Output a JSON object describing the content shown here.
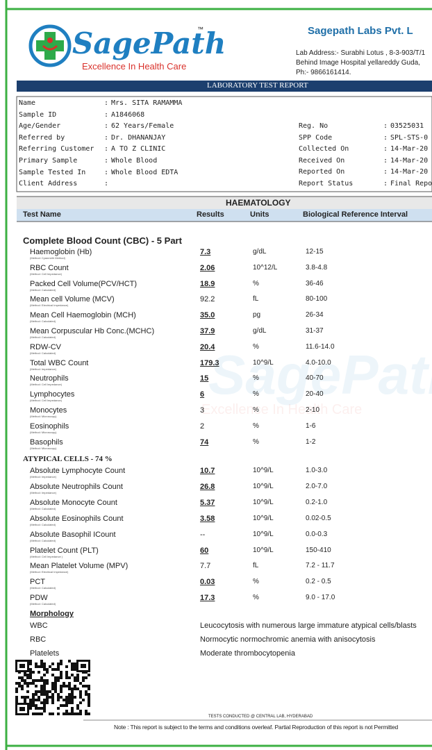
{
  "header": {
    "logo_text": "SagePath",
    "trademark": "™",
    "tagline": "Excellence In Health Care",
    "lab_name": "Sagepath Labs Pvt. L",
    "address_lines": [
      "Lab Address:- Surabhi Lotus , 8-3-903/T/1",
      "Behind Image Hospital yellareddy Guda,",
      "Ph:- 9866161414."
    ]
  },
  "banner": "LABORATORY TEST REPORT",
  "patient": {
    "separator": ":",
    "left": [
      {
        "label": "Name",
        "value": "Mrs. SITA RAMAMMA"
      },
      {
        "label": "Sample ID",
        "value": "A1846068"
      },
      {
        "label": "Age/Gender",
        "value": "62 Years/Female"
      },
      {
        "label": "Referred by",
        "value": "Dr. DHANANJAY"
      },
      {
        "label": "Referring Customer",
        "value": "A TO Z CLINIC"
      },
      {
        "label": "Primary Sample",
        "value": "Whole Blood"
      },
      {
        "label": "Sample Tested In",
        "value": "Whole Blood EDTA"
      },
      {
        "label": "Client Address"
      }
    ],
    "right": [
      {
        "label": "Reg. No",
        "value": "03525031"
      },
      {
        "label": "SPP Code",
        "value": "SPL-STS-0"
      },
      {
        "label": "Collected On",
        "value": "14-Mar-20"
      },
      {
        "label": "Received On",
        "value": "14-Mar-20"
      },
      {
        "label": "Reported On",
        "value": "14-Mar-20"
      },
      {
        "label": "Report Status",
        "value": "Final Report"
      }
    ]
  },
  "section": "HAEMATOLOGY",
  "columns": [
    "Test Name",
    "Results",
    "Units",
    "Biological Reference Interval"
  ],
  "cbc": {
    "title": "Complete Blood Count (CBC) - 5 Part",
    "tests": [
      {
        "name": "Haemoglobin (Hb)",
        "method": "(Method: Cyanmeth Method)",
        "result": "7.3",
        "unit": "g/dL",
        "range": "12-15",
        "abnormal": true
      },
      {
        "name": "RBC Count",
        "method": "(Method: Cell Impedance)",
        "result": "2.06",
        "unit": "10^12/L",
        "range": "3.8-4.8",
        "abnormal": true
      },
      {
        "name": "Packed Cell Volume(PCV/HCT)",
        "method": "(Method: Calculated)",
        "result": "18.9",
        "unit": "%",
        "range": "36-46",
        "abnormal": true
      },
      {
        "name": "Mean cell Volume (MCV)",
        "method": "(Method: Electrical Impedance)",
        "result": "92.2",
        "unit": "fL",
        "range": "80-100",
        "abnormal": false
      },
      {
        "name": "Mean Cell Haemoglobin (MCH)",
        "method": "(Method: Calculated)",
        "result": "35.0",
        "unit": "pg",
        "range": "26-34",
        "abnormal": true
      },
      {
        "name": "Mean Corpuscular Hb Conc.(MCHC)",
        "method": "(Method: Calculated)",
        "result": "37.9",
        "unit": "g/dL",
        "range": "31-37",
        "abnormal": true
      },
      {
        "name": "RDW-CV",
        "method": "(Method: Calculated)",
        "result": "20.4",
        "unit": "%",
        "range": "11.6-14.0",
        "abnormal": true
      },
      {
        "name": "Total WBC Count",
        "method": "(Method: Impedance)",
        "result": "179.3",
        "unit": "10^9/L",
        "range": "4.0-10.0",
        "abnormal": true
      },
      {
        "name": "Neutrophils",
        "method": "(Method: Cell Impedance)",
        "result": "15",
        "unit": "%",
        "range": "40-70",
        "abnormal": true
      },
      {
        "name": "Lymphocytes",
        "method": "(Method: Cell Impedance)",
        "result": "6",
        "unit": "%",
        "range": "20-40",
        "abnormal": true
      },
      {
        "name": "Monocytes",
        "method": "(Method: Microscopy)",
        "result": "3",
        "unit": "%",
        "range": "2-10",
        "abnormal": false
      },
      {
        "name": "Eosinophils",
        "method": "(Method: Microscopy)",
        "result": "2",
        "unit": "%",
        "range": "1-6",
        "abnormal": false
      },
      {
        "name": "Basophils",
        "method": "(Method: Microscopy)",
        "result": "74",
        "unit": "%",
        "range": "1-2",
        "abnormal": true
      }
    ]
  },
  "atypical": {
    "title": "ATYPICAL CELLS - 74 %",
    "tests": [
      {
        "name": "Absolute Lymphocyte Count",
        "method": "(Method: Impedance)",
        "result": "10.7",
        "unit": "10^9/L",
        "range": "1.0-3.0",
        "abnormal": true
      },
      {
        "name": "Absolute Neutrophils Count",
        "method": "(Method: Impedance)",
        "result": "26.8",
        "unit": "10^9/L",
        "range": "2.0-7.0",
        "abnormal": true
      },
      {
        "name": "Absolute Monocyte Count",
        "method": "(Method: Calculated)",
        "result": "5.37",
        "unit": "10^9/L",
        "range": "0.2-1.0",
        "abnormal": true
      },
      {
        "name": "Absolute Eosinophils Count",
        "method": "(Method: Calculated)",
        "result": "3.58",
        "unit": "10^9/L",
        "range": "0.02-0.5",
        "abnormal": true
      },
      {
        "name": "Absolute Basophil ICount",
        "method": "(Method: Calculated)",
        "result": "--",
        "unit": "10^9/L",
        "range": "0.0-0.3",
        "abnormal": false
      },
      {
        "name": "Platelet Count (PLT)",
        "method": "(Method: Cell Impedance )",
        "result": "60",
        "unit": "10^9/L",
        "range": "150-410",
        "abnormal": true
      },
      {
        "name": "Mean Platelet Volume (MPV)",
        "method": "(Method: Electrical Impedance)",
        "result": "7.7",
        "unit": "fL",
        "range": "7.2 - 11.7",
        "abnormal": false
      },
      {
        "name": "PCT",
        "method": "(Method: Calculated)",
        "result": "0.03",
        "unit": "%",
        "range": "0.2 - 0.5",
        "abnormal": true
      },
      {
        "name": "PDW",
        "method": "(Method: Calculated)",
        "result": "17.3",
        "unit": "%",
        "range": "9.0 - 17.0",
        "abnormal": true
      }
    ]
  },
  "morphology": {
    "title": "Morphology",
    "rows": [
      {
        "label": "WBC",
        "finding": "Leucocytosis with numerous large immature atypical cells/blasts"
      },
      {
        "label": "RBC",
        "finding": "Normocytic normochromic anemia with anisocytosis"
      },
      {
        "label": "Platelets",
        "finding": "Moderate thrombocytopenia"
      }
    ]
  },
  "footer": {
    "conducted": "TESTS CONDUCTED @ CENTRAL LAB, HYDERABAD",
    "note": "Note : This report is subject to the terms and conditions overleaf. Partial Reproduction of this report is not Permitted"
  }
}
